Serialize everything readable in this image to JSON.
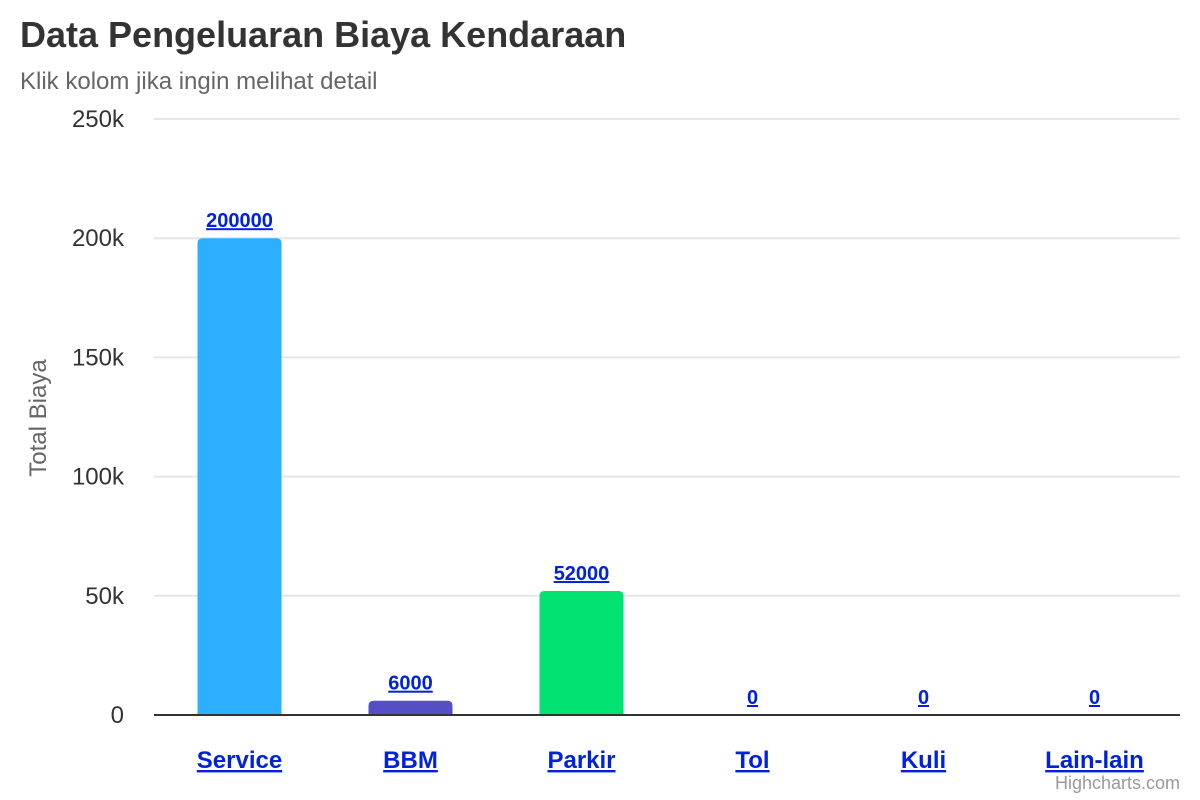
{
  "chart_data": {
    "type": "bar",
    "title": "Data Pengeluaran Biaya Kendaraan",
    "subtitle": "Klik kolom jika ingin melihat detail",
    "ylabel": "Total Biaya",
    "xlabel": "",
    "categories": [
      "Service",
      "BBM",
      "Parkir",
      "Tol",
      "Kuli",
      "Lain-lain"
    ],
    "values": [
      200000,
      6000,
      52000,
      0,
      0,
      0
    ],
    "data_labels": [
      "200000",
      "6000",
      "52000",
      "0",
      "0",
      "0"
    ],
    "colors": [
      "#2caffe",
      "#544fc5",
      "#00e272",
      "#fe6a35",
      "#6b8abc",
      "#d568fb"
    ],
    "ylim": [
      0,
      250000
    ],
    "yticks": [
      0,
      50000,
      100000,
      150000,
      200000,
      250000
    ],
    "ytick_labels": [
      "0",
      "50k",
      "100k",
      "150k",
      "200k",
      "250k"
    ],
    "grid": true,
    "legend": "none"
  },
  "credits": "Highcharts.com"
}
